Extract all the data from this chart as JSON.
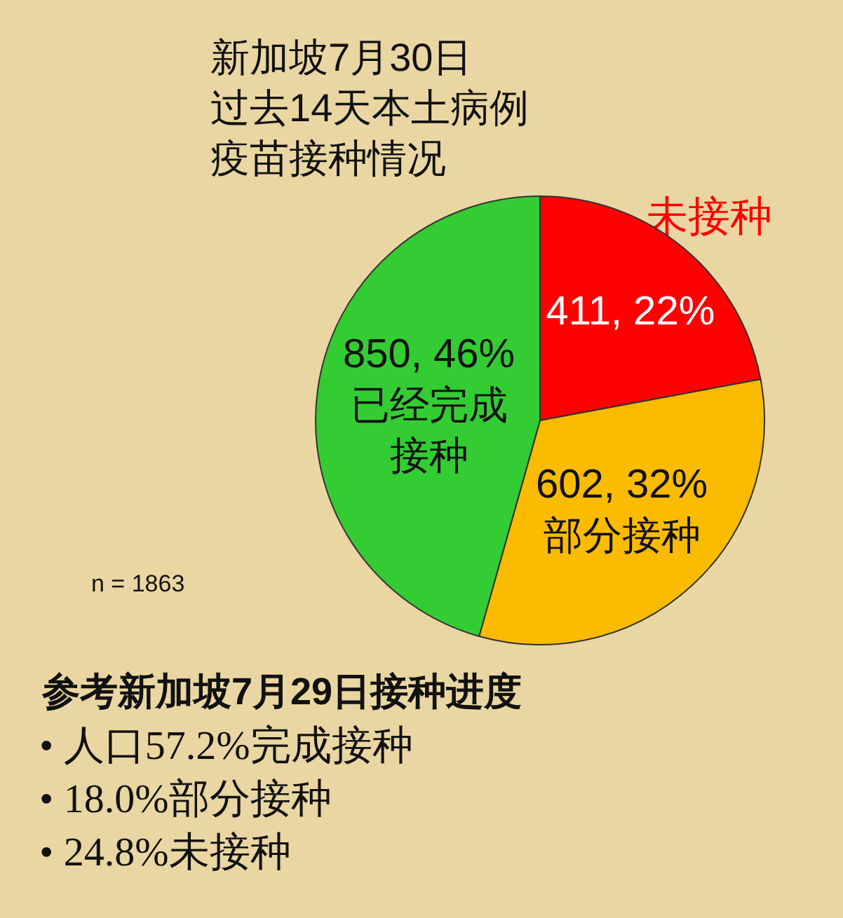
{
  "chart_data": {
    "type": "pie",
    "title": "新加坡7月30日",
    "subtitle": "过去14天本土病例疫苗接种情况",
    "categories": [
      "未接种",
      "部分接种",
      "已经完成接种"
    ],
    "values": [
      411,
      602,
      850
    ],
    "colors": [
      "#fe0000",
      "#fabb00",
      "#33cc33"
    ],
    "value_labels": [
      "411, 22%",
      "602, 32%",
      "850, 46%"
    ],
    "annotations": [
      "n = 1863",
      "参考新加坡7月29日接种进度",
      "• 人口57.2%完成接种",
      "• 18.0%部分接种",
      "• 24.8%未接种"
    ]
  }
}
